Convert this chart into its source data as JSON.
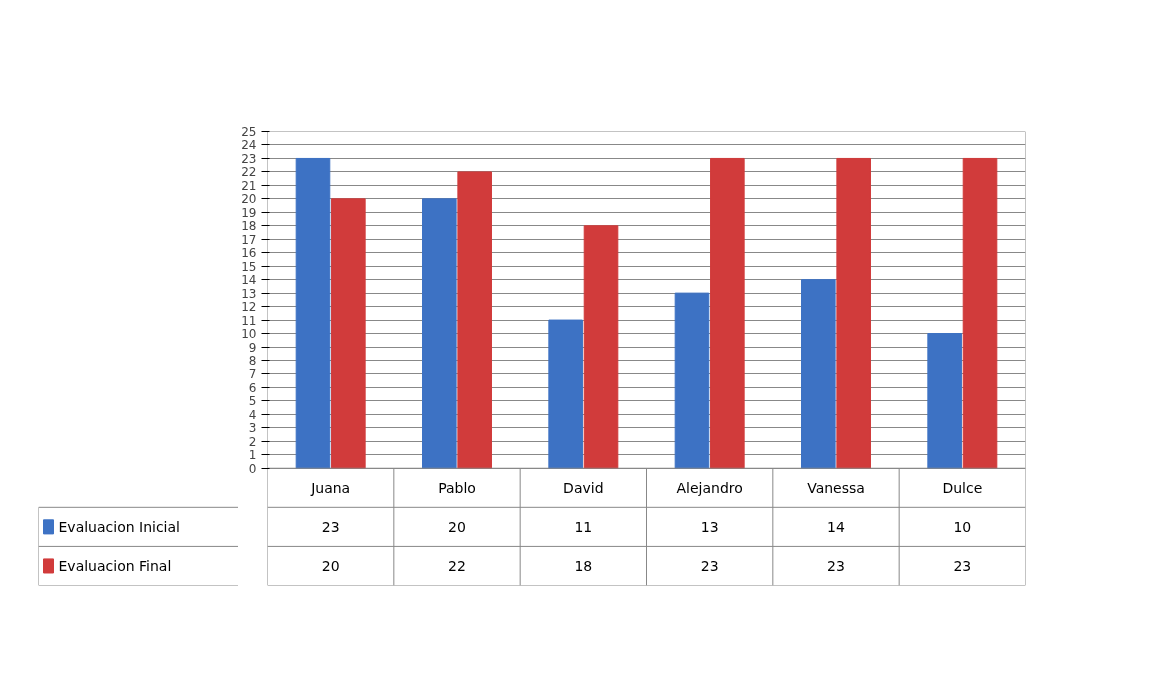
{
  "chart_data": {
    "type": "bar",
    "categories": [
      "Juana",
      "Pablo",
      "David",
      "Alejandro",
      "Vanessa",
      "Dulce"
    ],
    "series": [
      {
        "name": "Evaluacion Inicial",
        "color": "#3d72c4",
        "values": [
          23,
          20,
          11,
          13,
          14,
          10
        ]
      },
      {
        "name": "Evaluacion Final",
        "color": "#d13b3b",
        "values": [
          20,
          22,
          18,
          23,
          23,
          23
        ]
      }
    ],
    "ylim": [
      0,
      25
    ],
    "yticks": [
      0,
      1,
      2,
      3,
      4,
      5,
      6,
      7,
      8,
      9,
      10,
      11,
      12,
      13,
      14,
      15,
      16,
      17,
      18,
      19,
      20,
      21,
      22,
      23,
      24,
      25
    ],
    "grid": "y",
    "legend": "bottom left",
    "data_labels": true
  }
}
